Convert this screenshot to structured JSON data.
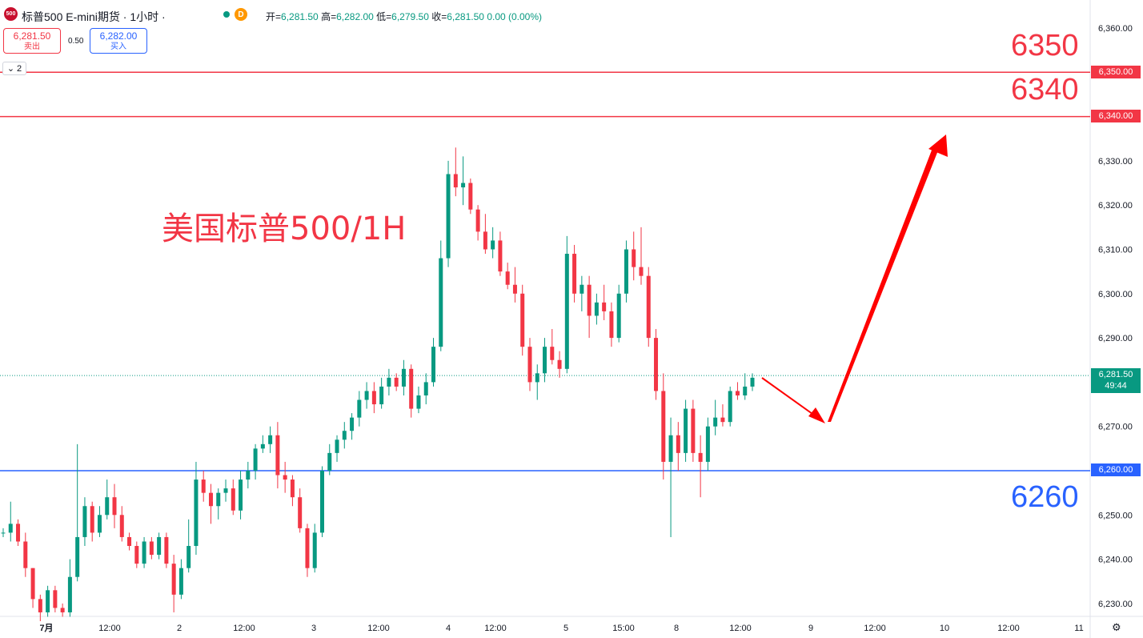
{
  "header": {
    "badge": "500",
    "title": "标普500 E-mini期货 · 1小时 ·",
    "status_letter": "D",
    "ohlc": {
      "open_label": "开=",
      "open": "6,281.50",
      "high_label": "高=",
      "high": "6,282.00",
      "low_label": "低=",
      "low": "6,279.50",
      "close_label": "收=",
      "close": "6,281.50",
      "change": "0.00 (0.00%)"
    }
  },
  "trade": {
    "sell_price": "6,281.50",
    "sell_label": "卖出",
    "spread": "0.50",
    "buy_price": "6,282.00",
    "buy_label": "买入"
  },
  "indicator_toggle": {
    "icon": "chevron-down-icon",
    "count": "2"
  },
  "annotations": {
    "watermark": "美国标普500/1H",
    "level_6350": "6350",
    "level_6340": "6340",
    "level_6260": "6260"
  },
  "price_axis": {
    "ticks": [
      "6,360.00",
      "6,330.00",
      "6,320.00",
      "6,310.00",
      "6,300.00",
      "6,290.00",
      "6,270.00",
      "6,250.00",
      "6,240.00",
      "6,230.00"
    ],
    "tag_6350": "6,350.00",
    "tag_6340": "6,340.00",
    "tag_6260": "6,260.00",
    "current_price": "6,281.50",
    "countdown": "49:44"
  },
  "time_axis": {
    "labels": [
      "7月",
      "12:00",
      "2",
      "12:00",
      "3",
      "12:00",
      "4",
      "12:00",
      "5",
      "15:00",
      "8",
      "12:00",
      "9",
      "12:00",
      "10",
      "12:00",
      "11"
    ]
  },
  "colors": {
    "up": "#089981",
    "down": "#f23645",
    "red_line": "#f23645",
    "blue_line": "#2962ff"
  },
  "chart_data": {
    "type": "candlestick",
    "timeframe": "1H",
    "ylim": [
      6225,
      6362
    ],
    "current_price": 6281.5,
    "horizontal_levels": [
      6350,
      6340,
      6260
    ],
    "candles": [
      [
        6246,
        6247,
        6245,
        6246
      ],
      [
        6246,
        6253,
        6244,
        6248
      ],
      [
        6248,
        6249,
        6243,
        6244
      ],
      [
        6244,
        6246,
        6236,
        6238
      ],
      [
        6238,
        6238,
        6229,
        6231
      ],
      [
        6231,
        6232,
        6226,
        6228
      ],
      [
        6228,
        6234,
        6227,
        6233
      ],
      [
        6233,
        6234,
        6228,
        6229
      ],
      [
        6229,
        6230,
        6227,
        6228
      ],
      [
        6228,
        6240,
        6227,
        6236
      ],
      [
        6236,
        6266,
        6235,
        6245
      ],
      [
        6245,
        6254,
        6243,
        6252
      ],
      [
        6252,
        6253,
        6244,
        6246
      ],
      [
        6246,
        6252,
        6245,
        6250
      ],
      [
        6250,
        6258,
        6249,
        6254
      ],
      [
        6254,
        6257,
        6247,
        6250
      ],
      [
        6250,
        6252,
        6244,
        6245
      ],
      [
        6245,
        6246,
        6242,
        6243
      ],
      [
        6243,
        6244,
        6238,
        6239
      ],
      [
        6239,
        6245,
        6238,
        6244
      ],
      [
        6244,
        6245,
        6240,
        6241
      ],
      [
        6241,
        6246,
        6240,
        6245
      ],
      [
        6245,
        6246,
        6238,
        6239
      ],
      [
        6239,
        6241,
        6228,
        6232
      ],
      [
        6232,
        6240,
        6231,
        6238
      ],
      [
        6238,
        6249,
        6237,
        6243
      ],
      [
        6243,
        6262,
        6241,
        6258
      ],
      [
        6258,
        6260,
        6253,
        6255
      ],
      [
        6255,
        6257,
        6248,
        6252
      ],
      [
        6252,
        6256,
        6249,
        6255
      ],
      [
        6255,
        6258,
        6253,
        6256
      ],
      [
        6256,
        6258,
        6250,
        6251
      ],
      [
        6251,
        6260,
        6249,
        6258
      ],
      [
        6258,
        6262,
        6256,
        6260
      ],
      [
        6260,
        6266,
        6258,
        6265
      ],
      [
        6265,
        6268,
        6264,
        6266
      ],
      [
        6266,
        6270,
        6264,
        6268
      ],
      [
        6268,
        6271,
        6256,
        6259
      ],
      [
        6259,
        6262,
        6255,
        6258
      ],
      [
        6258,
        6259,
        6252,
        6254
      ],
      [
        6254,
        6256,
        6246,
        6247
      ],
      [
        6247,
        6248,
        6236,
        6238
      ],
      [
        6238,
        6248,
        6237,
        6246
      ],
      [
        6246,
        6261,
        6245,
        6260
      ],
      [
        6260,
        6266,
        6259,
        6264
      ],
      [
        6264,
        6268,
        6262,
        6267
      ],
      [
        6267,
        6271,
        6265,
        6269
      ],
      [
        6269,
        6273,
        6267,
        6272
      ],
      [
        6272,
        6278,
        6270,
        6276
      ],
      [
        6276,
        6280,
        6274,
        6278
      ],
      [
        6278,
        6280,
        6273,
        6275
      ],
      [
        6275,
        6281,
        6274,
        6279
      ],
      [
        6279,
        6283,
        6277,
        6281
      ],
      [
        6281,
        6282,
        6278,
        6279
      ],
      [
        6279,
        6285,
        6277,
        6283
      ],
      [
        6283,
        6284,
        6272,
        6274
      ],
      [
        6274,
        6279,
        6273,
        6277
      ],
      [
        6277,
        6282,
        6275,
        6280
      ],
      [
        6280,
        6290,
        6279,
        6288
      ],
      [
        6288,
        6312,
        6287,
        6308
      ],
      [
        6308,
        6330,
        6306,
        6327
      ],
      [
        6327,
        6333,
        6322,
        6324
      ],
      [
        6324,
        6331,
        6320,
        6325
      ],
      [
        6325,
        6326,
        6318,
        6319
      ],
      [
        6319,
        6320,
        6312,
        6314
      ],
      [
        6314,
        6318,
        6309,
        6310
      ],
      [
        6310,
        6315,
        6308,
        6312
      ],
      [
        6312,
        6314,
        6304,
        6305
      ],
      [
        6305,
        6307,
        6301,
        6302
      ],
      [
        6302,
        6306,
        6298,
        6300
      ],
      [
        6300,
        6302,
        6286,
        6288
      ],
      [
        6288,
        6290,
        6278,
        6280
      ],
      [
        6280,
        6284,
        6276,
        6282
      ],
      [
        6282,
        6290,
        6280,
        6288
      ],
      [
        6288,
        6292,
        6284,
        6285
      ],
      [
        6285,
        6287,
        6281,
        6283
      ],
      [
        6283,
        6313,
        6282,
        6309
      ],
      [
        6309,
        6311,
        6298,
        6300
      ],
      [
        6300,
        6304,
        6296,
        6302
      ],
      [
        6302,
        6304,
        6290,
        6295
      ],
      [
        6295,
        6300,
        6293,
        6298
      ],
      [
        6298,
        6302,
        6294,
        6296
      ],
      [
        6296,
        6298,
        6288,
        6290
      ],
      [
        6290,
        6302,
        6289,
        6300
      ],
      [
        6300,
        6312,
        6298,
        6310
      ],
      [
        6310,
        6314,
        6303,
        6306
      ],
      [
        6306,
        6315,
        6302,
        6304
      ],
      [
        6304,
        6306,
        6288,
        6290
      ],
      [
        6290,
        6292,
        6276,
        6278
      ],
      [
        6278,
        6282,
        6258,
        6262
      ],
      [
        6262,
        6272,
        6245,
        6268
      ],
      [
        6268,
        6271,
        6260,
        6264
      ],
      [
        6264,
        6276,
        6262,
        6274
      ],
      [
        6274,
        6276,
        6262,
        6264
      ],
      [
        6264,
        6268,
        6254,
        6262
      ],
      [
        6262,
        6272,
        6260,
        6270
      ],
      [
        6270,
        6276,
        6268,
        6272
      ],
      [
        6272,
        6275,
        6270,
        6271
      ],
      [
        6271,
        6279,
        6270,
        6278
      ],
      [
        6278,
        6280,
        6276,
        6277
      ],
      [
        6277,
        6282,
        6276,
        6279
      ],
      [
        6279,
        6282,
        6278,
        6281
      ]
    ]
  }
}
